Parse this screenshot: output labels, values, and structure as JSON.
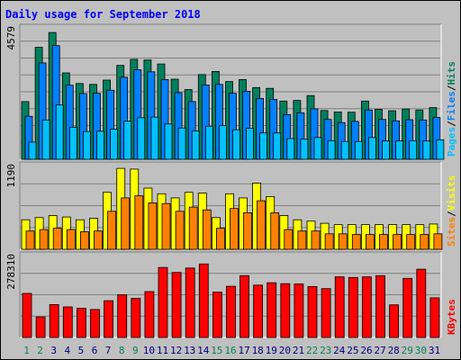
{
  "colors": {
    "background": "#c0c0c0",
    "title": "#0000ff",
    "hits": "#00805c",
    "files": "#0080ff",
    "pages": "#00c0ff",
    "visits": "#ffff00",
    "sites": "#ff8000",
    "kbytes": "#ff0000",
    "weekend_label": "#00805c",
    "weekday_label": "#000080"
  },
  "chart_data": {
    "type": "bar",
    "title": "Daily usage for September 2018",
    "x": [
      1,
      2,
      3,
      4,
      5,
      6,
      7,
      8,
      9,
      10,
      11,
      12,
      13,
      14,
      15,
      16,
      17,
      18,
      19,
      20,
      21,
      22,
      23,
      24,
      25,
      26,
      27,
      28,
      29,
      30,
      31
    ],
    "weekend_days": [
      1,
      2,
      8,
      9,
      15,
      16,
      22,
      23,
      29,
      30
    ],
    "x_tick_labels": [
      "1",
      "2",
      "3",
      "4",
      "5",
      "6",
      "7",
      "8",
      "9",
      "10",
      "11",
      "12",
      "13",
      "14",
      "15",
      "16",
      "17",
      "18",
      "19",
      "20",
      "21",
      "22",
      "23",
      "24",
      "25",
      "26",
      "27",
      "28",
      "29",
      "30",
      "31"
    ],
    "panels": [
      {
        "name": "hits-files-pages",
        "max_label": "4579",
        "ymax": 4579,
        "axis_label_parts": [
          "Pages",
          "/",
          "Files",
          "/",
          "Hits"
        ],
        "series": [
          {
            "name": "Hits",
            "values": [
              2010,
              3900,
              4420,
              3010,
              2640,
              2610,
              2760,
              3270,
              3480,
              3460,
              3320,
              2790,
              2430,
              2950,
              3060,
              2710,
              2780,
              2500,
              2470,
              2030,
              2050,
              2220,
              1700,
              1650,
              1640,
              2030,
              1740,
              1690,
              1750,
              1720,
              1800
            ]
          },
          {
            "name": "Files",
            "values": [
              1500,
              3360,
              3960,
              2580,
              2290,
              2300,
              2410,
              2860,
              3120,
              3050,
              2780,
              2320,
              2010,
              2590,
              2610,
              2300,
              2370,
              2120,
              2090,
              1560,
              1620,
              1760,
              1390,
              1280,
              1320,
              1720,
              1390,
              1340,
              1380,
              1370,
              1460
            ]
          },
          {
            "name": "Pages",
            "values": [
              600,
              1370,
              1900,
              1120,
              970,
              980,
              1050,
              1330,
              1450,
              1470,
              1230,
              1090,
              990,
              1150,
              1180,
              1030,
              1080,
              920,
              920,
              720,
              700,
              760,
              650,
              620,
              620,
              760,
              640,
              640,
              650,
              640,
              680
            ]
          }
        ]
      },
      {
        "name": "visits-sites",
        "max_label": "1190",
        "ymax": 1190,
        "axis_label_parts": [
          "Sites",
          "/",
          "Visits"
        ],
        "series": [
          {
            "name": "Visits",
            "values": [
              420,
              450,
              480,
              460,
              420,
              440,
              810,
              1150,
              1140,
              870,
              790,
              730,
              810,
              800,
              450,
              790,
              730,
              940,
              750,
              480,
              420,
              400,
              370,
              350,
              350,
              350,
              350,
              350,
              350,
              350,
              360
            ]
          },
          {
            "name": "Sites",
            "values": [
              260,
              280,
              300,
              280,
              250,
              260,
              540,
              730,
              760,
              660,
              650,
              540,
              600,
              560,
              300,
              580,
              520,
              690,
              520,
              280,
              260,
              260,
              220,
              220,
              210,
              210,
              210,
              210,
              210,
              210,
              220
            ]
          }
        ]
      },
      {
        "name": "kbytes",
        "max_label": "278310",
        "ymax": 278310,
        "axis_label_parts": [
          "KBytes"
        ],
        "series": [
          {
            "name": "KBytes",
            "values": [
              150000,
              70000,
              112000,
              104000,
              99000,
              95000,
              125000,
              145000,
              133000,
              156000,
              238000,
              221000,
              236000,
              250000,
              154000,
              174000,
              210000,
              178000,
              186000,
              183000,
              182000,
              173000,
              166000,
              206000,
              204000,
              206000,
              210000,
              111000,
              201000,
              232000,
              135000
            ]
          }
        ]
      }
    ]
  }
}
